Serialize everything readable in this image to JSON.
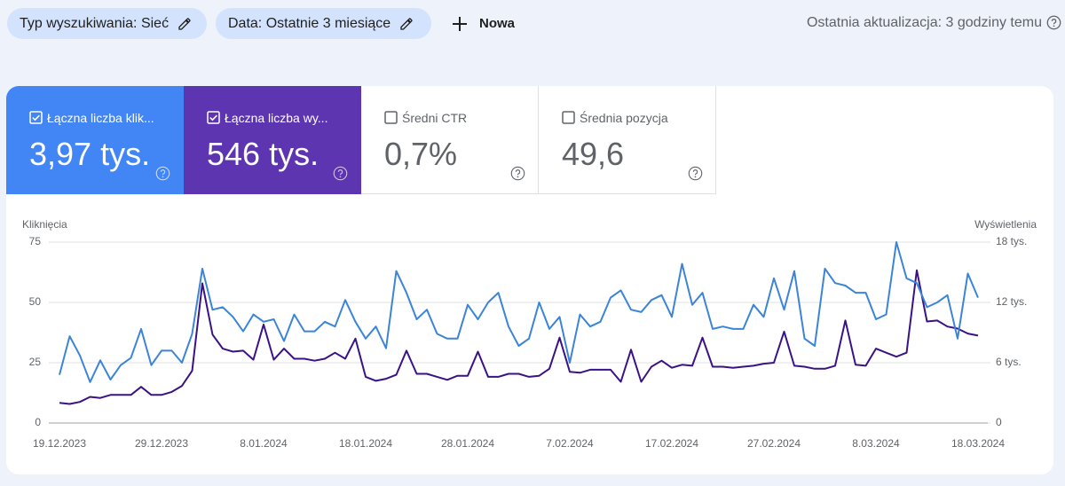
{
  "filters": [
    {
      "label": "Typ wyszukiwania: Sieć"
    },
    {
      "label": "Data: Ostatnie 3 miesiące"
    }
  ],
  "new_button": "Nowa",
  "last_update": "Ostatnia aktualizacja: 3 godziny temu",
  "metrics": [
    {
      "label": "Łączna liczba klik...",
      "value": "3,97 tys.",
      "checked": true
    },
    {
      "label": "Łączna liczba wy...",
      "value": "546 tys.",
      "checked": true
    },
    {
      "label": "Średni CTR",
      "value": "0,7%",
      "checked": false
    },
    {
      "label": "Średnia pozycja",
      "value": "49,6",
      "checked": false
    }
  ],
  "chart_data": {
    "type": "line",
    "categories": [
      "19.12.2023",
      null,
      null,
      null,
      null,
      null,
      null,
      null,
      null,
      null,
      "29.12.2023",
      null,
      null,
      null,
      null,
      null,
      null,
      null,
      null,
      null,
      "8.01.2024",
      null,
      null,
      null,
      null,
      null,
      null,
      null,
      null,
      null,
      "18.01.2024",
      null,
      null,
      null,
      null,
      null,
      null,
      null,
      null,
      null,
      "28.01.2024",
      null,
      null,
      null,
      null,
      null,
      null,
      null,
      null,
      null,
      "7.02.2024",
      null,
      null,
      null,
      null,
      null,
      null,
      null,
      null,
      null,
      "17.02.2024",
      null,
      null,
      null,
      null,
      null,
      null,
      null,
      null,
      null,
      "27.02.2024",
      null,
      null,
      null,
      null,
      null,
      null,
      null,
      null,
      null,
      "8.03.2024",
      null,
      null,
      null,
      null,
      null,
      null,
      null,
      null,
      null,
      "18.03.2024"
    ],
    "series": [
      {
        "name": "Kliknięcia",
        "color": "#3b84d8",
        "values": [
          20,
          36,
          28,
          17,
          26,
          18,
          24,
          27,
          39,
          24,
          30,
          30,
          25,
          37,
          64,
          47,
          48,
          44,
          38,
          45,
          42,
          43,
          34,
          45,
          38,
          38,
          42,
          40,
          51,
          42,
          35,
          40,
          31,
          63,
          54,
          43,
          47,
          37,
          35,
          35,
          49,
          43,
          50,
          54,
          40,
          32,
          35,
          50,
          39,
          44,
          25,
          45,
          40,
          42,
          52,
          55,
          47,
          46,
          51,
          53,
          44,
          66,
          49,
          54,
          39,
          40,
          39,
          39,
          49,
          44,
          60,
          47,
          63,
          35,
          32,
          64,
          58,
          57,
          54,
          54,
          43,
          45,
          75,
          60,
          58,
          48,
          50,
          53,
          35,
          62,
          52
        ]
      },
      {
        "name": "Wyświetlenia",
        "color": "#3a1286",
        "axis": "y2",
        "values": [
          2000,
          1900,
          2100,
          2600,
          2500,
          2800,
          2800,
          2800,
          3600,
          2800,
          2800,
          3100,
          3700,
          5200,
          13900,
          8800,
          7400,
          7100,
          7200,
          6300,
          9800,
          6300,
          7400,
          6400,
          6400,
          6200,
          6400,
          7000,
          6400,
          8400,
          4600,
          4200,
          4400,
          4800,
          7200,
          4900,
          4900,
          4600,
          4300,
          4700,
          4700,
          7100,
          4600,
          4600,
          4900,
          4900,
          4600,
          4700,
          5400,
          8500,
          5100,
          5000,
          5300,
          5300,
          5300,
          4100,
          7300,
          4100,
          5600,
          6200,
          5500,
          5800,
          5700,
          8500,
          5600,
          5600,
          5500,
          5600,
          5700,
          5900,
          6000,
          9100,
          5700,
          5600,
          5400,
          5400,
          5700,
          10200,
          5800,
          5700,
          7400,
          7000,
          6600,
          7000,
          15200,
          10100,
          10200,
          9600,
          9400,
          8900,
          8700
        ]
      }
    ],
    "ylim": [
      0,
      75
    ],
    "yticks": [
      0,
      25,
      50,
      75
    ],
    "y2lim": [
      0,
      18000
    ],
    "y2ticks": [
      0,
      {
        "value": 6000,
        "label": "6 tys."
      },
      {
        "value": 12000,
        "label": "12 tys."
      },
      {
        "value": 18000,
        "label": "18 tys."
      }
    ],
    "grid": true
  }
}
